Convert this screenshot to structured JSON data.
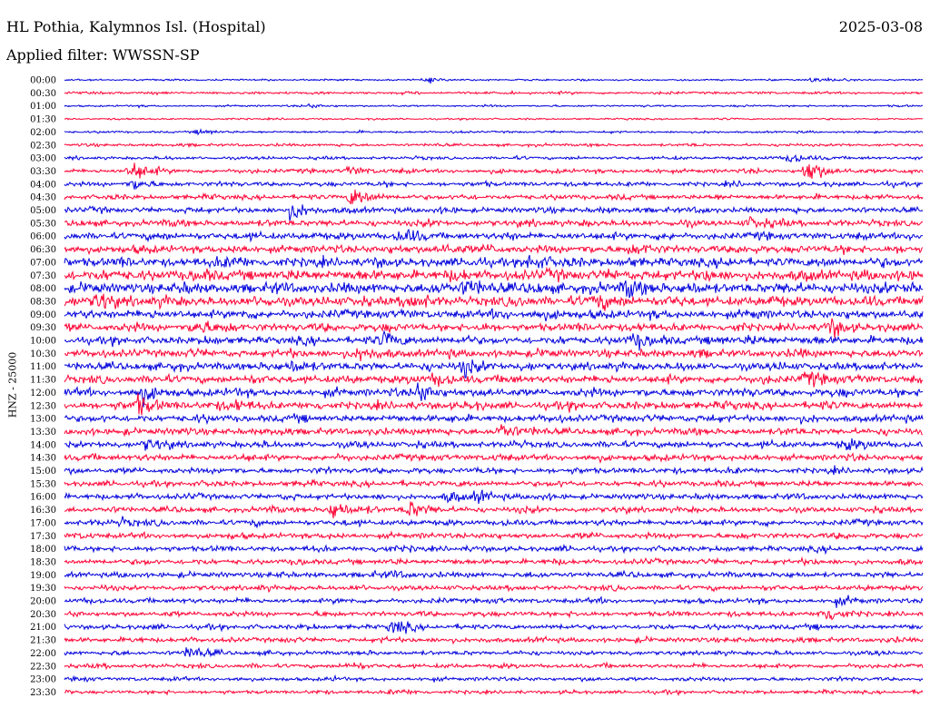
{
  "header": {
    "station": "HL Pothia, Kalymnos Isl. (Hospital)",
    "date": "2025-03-08",
    "filter": "Applied filter: WWSSN-SP",
    "channel": "HNZ - 25000"
  },
  "colors": {
    "trace_even": "#0000dd",
    "trace_odd": "#ff0033",
    "background": "#ffffff",
    "text": "#000000"
  },
  "chart_data": {
    "type": "line",
    "title": "HL Pothia, Kalymnos Isl. (Hospital)",
    "subtitle": "Applied filter: WWSSN-SP",
    "ylabel": "HNZ - 25000",
    "xlabel": "",
    "grid": false,
    "legend": "none",
    "trace_minutes": 30,
    "row_labels": [
      "00:00",
      "00:30",
      "01:00",
      "01:30",
      "02:00",
      "02:30",
      "03:00",
      "03:30",
      "04:00",
      "04:30",
      "05:00",
      "05:30",
      "06:00",
      "06:30",
      "07:00",
      "07:30",
      "08:00",
      "08:30",
      "09:00",
      "09:30",
      "10:00",
      "10:30",
      "11:00",
      "11:30",
      "12:00",
      "12:30",
      "13:00",
      "13:30",
      "14:00",
      "14:30",
      "15:00",
      "15:30",
      "16:00",
      "16:30",
      "17:00",
      "17:30",
      "18:00",
      "18:30",
      "19:00",
      "19:30",
      "20:00",
      "20:30",
      "21:00",
      "21:30",
      "22:00",
      "22:30",
      "23:00",
      "23:30"
    ],
    "noise_amplitude": [
      1.2,
      1.8,
      1.3,
      1.2,
      1.5,
      2.0,
      2.2,
      3.0,
      3.2,
      3.5,
      4.0,
      4.5,
      5.0,
      5.5,
      6.5,
      7.5,
      7.5,
      7.0,
      6.0,
      5.5,
      5.5,
      5.5,
      5.5,
      5.5,
      5.5,
      5.5,
      5.0,
      4.8,
      4.5,
      4.5,
      4.0,
      4.0,
      4.0,
      4.0,
      4.0,
      4.0,
      3.8,
      3.8,
      3.8,
      3.5,
      3.5,
      3.5,
      3.5,
      3.5,
      3.0,
      3.0,
      2.8,
      2.5
    ],
    "events": [
      {
        "row": 0,
        "minute": 26.2,
        "amplitude": 5
      },
      {
        "row": 0,
        "minute": 12.8,
        "amplitude": 3
      },
      {
        "row": 2,
        "minute": 8.6,
        "amplitude": 3
      },
      {
        "row": 4,
        "minute": 4.8,
        "amplitude": 4
      },
      {
        "row": 6,
        "minute": 25.4,
        "amplitude": 9
      },
      {
        "row": 7,
        "minute": 2.4,
        "amplitude": 16
      },
      {
        "row": 7,
        "minute": 26.0,
        "amplitude": 20
      },
      {
        "row": 7,
        "minute": 10.0,
        "amplitude": 7
      },
      {
        "row": 8,
        "minute": 2.5,
        "amplitude": 8
      },
      {
        "row": 9,
        "minute": 10.1,
        "amplitude": 16
      },
      {
        "row": 10,
        "minute": 8.0,
        "amplitude": 14
      },
      {
        "row": 11,
        "minute": 24.0,
        "amplitude": 8
      },
      {
        "row": 12,
        "minute": 11.8,
        "amplitude": 9
      },
      {
        "row": 13,
        "minute": 13.2,
        "amplitude": 7
      },
      {
        "row": 13,
        "minute": 19.8,
        "amplitude": 6
      },
      {
        "row": 14,
        "minute": 16.3,
        "amplitude": 11
      },
      {
        "row": 14,
        "minute": 5.9,
        "amplitude": 7
      },
      {
        "row": 16,
        "minute": 14.1,
        "amplitude": 14
      },
      {
        "row": 16,
        "minute": 19.7,
        "amplitude": 12
      },
      {
        "row": 16,
        "minute": 29.6,
        "amplitude": 9
      },
      {
        "row": 17,
        "minute": 1.2,
        "amplitude": 12
      },
      {
        "row": 17,
        "minute": 12.0,
        "amplitude": 9
      },
      {
        "row": 17,
        "minute": 18.6,
        "amplitude": 10
      },
      {
        "row": 18,
        "minute": 16.6,
        "amplitude": 6
      },
      {
        "row": 19,
        "minute": 4.6,
        "amplitude": 13
      },
      {
        "row": 19,
        "minute": 26.8,
        "amplitude": 11
      },
      {
        "row": 20,
        "minute": 11.2,
        "amplitude": 11
      },
      {
        "row": 20,
        "minute": 20.0,
        "amplitude": 11
      },
      {
        "row": 20,
        "minute": 24.0,
        "amplitude": 6
      },
      {
        "row": 21,
        "minute": 10.4,
        "amplitude": 10
      },
      {
        "row": 22,
        "minute": 14.0,
        "amplitude": 13
      },
      {
        "row": 22,
        "minute": 8.0,
        "amplitude": 8
      },
      {
        "row": 23,
        "minute": 13.0,
        "amplitude": 10
      },
      {
        "row": 23,
        "minute": 26.0,
        "amplitude": 12
      },
      {
        "row": 24,
        "minute": 2.7,
        "amplitude": 15
      },
      {
        "row": 24,
        "minute": 12.4,
        "amplitude": 16
      },
      {
        "row": 25,
        "minute": 2.6,
        "amplitude": 14
      },
      {
        "row": 25,
        "minute": 6.0,
        "amplitude": 8
      },
      {
        "row": 27,
        "minute": 15.3,
        "amplitude": 12
      },
      {
        "row": 28,
        "minute": 2.9,
        "amplitude": 8
      },
      {
        "row": 28,
        "minute": 27.3,
        "amplitude": 8
      },
      {
        "row": 32,
        "minute": 13.5,
        "amplitude": 7
      },
      {
        "row": 32,
        "minute": 14.5,
        "amplitude": 8
      },
      {
        "row": 33,
        "minute": 9.4,
        "amplitude": 16
      },
      {
        "row": 33,
        "minute": 12.1,
        "amplitude": 13
      },
      {
        "row": 34,
        "minute": 2.0,
        "amplitude": 6
      },
      {
        "row": 36,
        "minute": 11.0,
        "amplitude": 5
      },
      {
        "row": 38,
        "minute": 11.5,
        "amplitude": 5
      },
      {
        "row": 40,
        "minute": 27.0,
        "amplitude": 5
      },
      {
        "row": 41,
        "minute": 26.6,
        "amplitude": 14
      },
      {
        "row": 42,
        "minute": 11.5,
        "amplitude": 10
      },
      {
        "row": 44,
        "minute": 4.4,
        "amplitude": 12
      },
      {
        "row": 45,
        "minute": 10.0,
        "amplitude": 4
      },
      {
        "row": 47,
        "minute": 11.5,
        "amplitude": 4
      }
    ]
  }
}
